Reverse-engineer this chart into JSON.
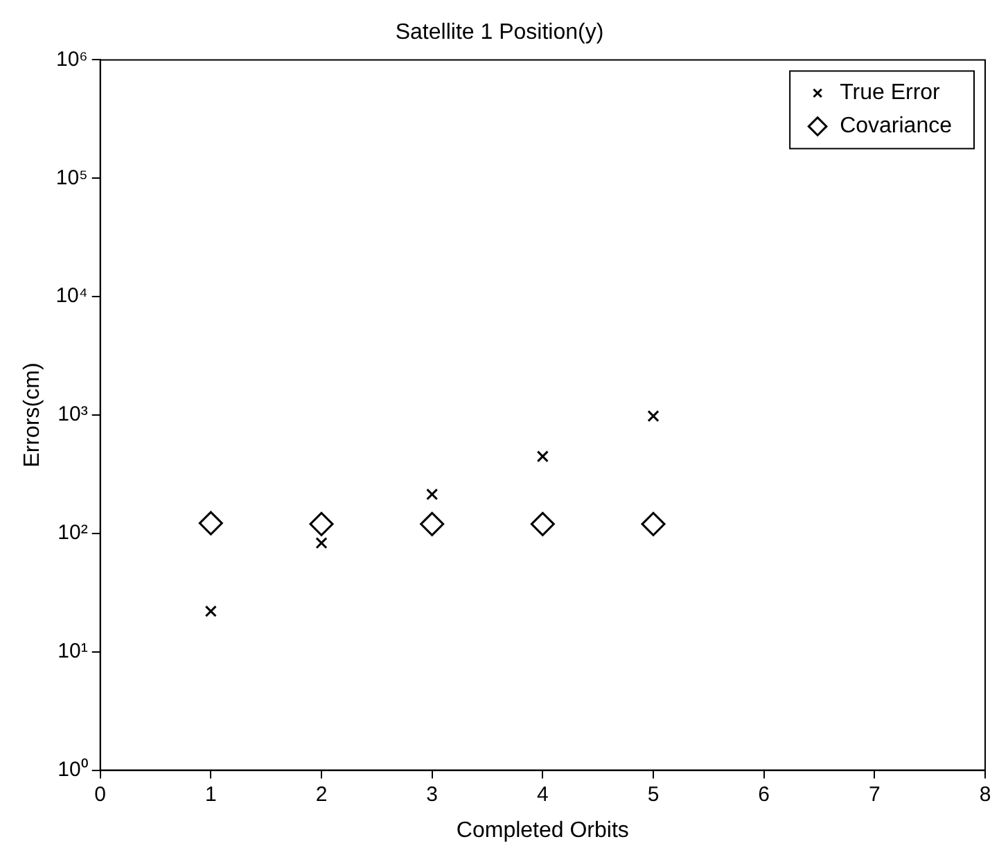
{
  "chart_data": {
    "type": "scatter",
    "title": "Satellite 1 Position(y)",
    "xlabel": "Completed Orbits",
    "ylabel": "Errors(cm)",
    "x": [
      1,
      2,
      3,
      4,
      5
    ],
    "series": [
      {
        "name": "True Error",
        "color": "#000000",
        "marker": "cross",
        "values": [
          22,
          83,
          214,
          447,
          980
        ]
      },
      {
        "name": "Covariance",
        "color": "#000000",
        "marker": "diamond",
        "values": [
          122,
          120,
          120,
          120,
          120
        ]
      }
    ],
    "log": "y",
    "xlim": [
      0,
      8
    ],
    "xticks": [
      0,
      1,
      2,
      3,
      4,
      5,
      6,
      7,
      8
    ],
    "ylim": [
      1,
      1000000
    ],
    "yticks": [
      {
        "value": 1,
        "label": "10⁰"
      },
      {
        "value": 10,
        "label": "10¹"
      },
      {
        "value": 100,
        "label": "10²"
      },
      {
        "value": 1000,
        "label": "10³"
      },
      {
        "value": 10000,
        "label": "10⁴"
      },
      {
        "value": 100000,
        "label": "10⁵"
      },
      {
        "value": 1000000,
        "label": "10⁶"
      }
    ],
    "grid": false,
    "legend": "top right"
  }
}
